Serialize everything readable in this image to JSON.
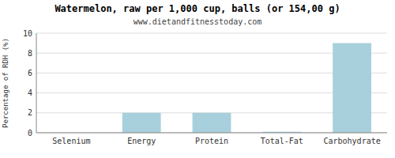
{
  "chart_data": {
    "type": "bar",
    "title": "Watermelon, raw per 1,000 cup, balls (or 154,00 g)",
    "subtitle": "www.dietandfitnesstoday.com",
    "categories": [
      "Selenium",
      "Energy",
      "Protein",
      "Total-Fat",
      "Carbohydrate"
    ],
    "values": [
      0.0,
      2.0,
      2.0,
      0.1,
      9.0
    ],
    "color": "#a8d0dc",
    "ylabel": "Percentage of RDH (%)",
    "ylim": [
      0,
      10
    ],
    "yticks": [
      0,
      2,
      4,
      6,
      8,
      10
    ],
    "grid": true
  }
}
